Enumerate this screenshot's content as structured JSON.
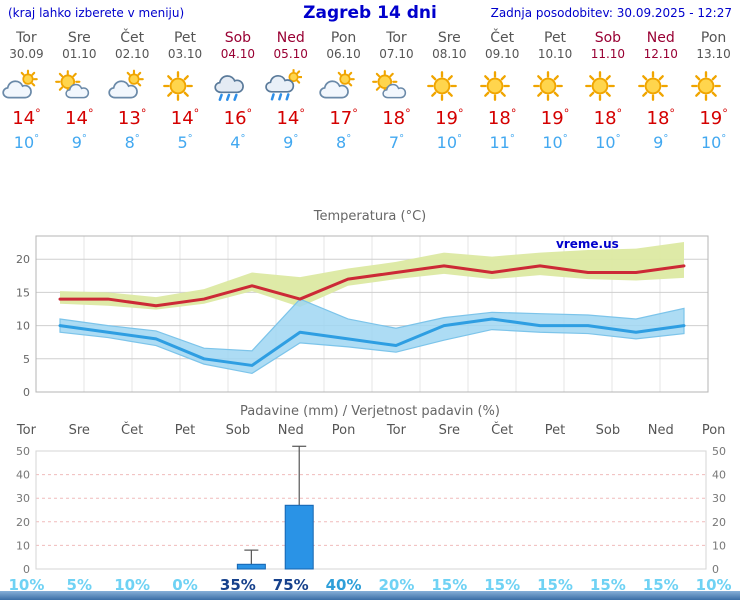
{
  "header": {
    "hint": "(kraj lahko izberete v meniju)",
    "title": "Zagreb 14 dni",
    "updated": "Zadnja posodobitev: 30.09.2025 - 12:27"
  },
  "ui": {
    "degree": "°"
  },
  "colors": {
    "accent_blue": "#0000cc",
    "weekday": "#555555",
    "weekend": "#990033",
    "temp_high": "#d40000",
    "temp_low": "#42a8f0",
    "line_high": "#cc2936",
    "line_low": "#2e9ee2",
    "band_high": "#dce9a2",
    "band_low": "#9fd6f2",
    "bar_fill": "#2a93e6",
    "bar_stroke": "#1565b0",
    "prob_low": "#6fd2f4",
    "prob_mid": "#2e9fd9",
    "prob_high": "#16418c"
  },
  "days": [
    {
      "name": "Tor",
      "date": "30.09",
      "icon": "cloud-sun",
      "high": "14",
      "low": "10",
      "weekend": false
    },
    {
      "name": "Sre",
      "date": "01.10",
      "icon": "sun-cloud",
      "high": "14",
      "low": "9",
      "weekend": false
    },
    {
      "name": "Čet",
      "date": "02.10",
      "icon": "cloud-sun",
      "high": "13",
      "low": "8",
      "weekend": false
    },
    {
      "name": "Pet",
      "date": "03.10",
      "icon": "sun",
      "high": "14",
      "low": "5",
      "weekend": false
    },
    {
      "name": "Sob",
      "date": "04.10",
      "icon": "rain",
      "high": "16",
      "low": "4",
      "weekend": true
    },
    {
      "name": "Ned",
      "date": "05.10",
      "icon": "rain-sun",
      "high": "14",
      "low": "9",
      "weekend": true
    },
    {
      "name": "Pon",
      "date": "06.10",
      "icon": "cloud-sun",
      "high": "17",
      "low": "8",
      "weekend": false
    },
    {
      "name": "Tor",
      "date": "07.10",
      "icon": "sun-cloud",
      "high": "18",
      "low": "7",
      "weekend": false
    },
    {
      "name": "Sre",
      "date": "08.10",
      "icon": "sun",
      "high": "19",
      "low": "10",
      "weekend": false
    },
    {
      "name": "Čet",
      "date": "09.10",
      "icon": "sun",
      "high": "18",
      "low": "11",
      "weekend": false
    },
    {
      "name": "Pet",
      "date": "10.10",
      "icon": "sun",
      "high": "19",
      "low": "10",
      "weekend": false
    },
    {
      "name": "Sob",
      "date": "11.10",
      "icon": "sun",
      "high": "18",
      "low": "10",
      "weekend": true
    },
    {
      "name": "Ned",
      "date": "12.10",
      "icon": "sun",
      "high": "18",
      "low": "9",
      "weekend": true
    },
    {
      "name": "Pon",
      "date": "13.10",
      "icon": "sun",
      "high": "19",
      "low": "10",
      "weekend": false
    }
  ],
  "chart_data": [
    {
      "type": "line",
      "title": "Temperatura (°C)",
      "watermark": "vreme.us",
      "x_labels": [
        "Tor 30.09",
        "Sre 01.10",
        "Čet 02.10",
        "Pet 03.10",
        "Sob 04.10",
        "Ned 05.10",
        "Pon 06.10",
        "Tor 07.10",
        "Sre 08.10",
        "Čet 09.10",
        "Pet 10.10",
        "Sob 11.10",
        "Ned 12.10",
        "Pon 13.10"
      ],
      "ylim": [
        0,
        23.5
      ],
      "yticks": [
        0,
        5,
        10,
        15,
        20
      ],
      "grid": true,
      "series": [
        {
          "name": "max-temperatura",
          "color": "#cc2936",
          "values": [
            14,
            14,
            13,
            14,
            16,
            14,
            17,
            18,
            19,
            18,
            19,
            18,
            18,
            19
          ]
        },
        {
          "name": "min-temperatura",
          "color": "#2e9ee2",
          "values": [
            10,
            9,
            8,
            5,
            4,
            9,
            8,
            7,
            10,
            11,
            10,
            10,
            9,
            10
          ]
        }
      ],
      "bands": [
        {
          "name": "max-razpon",
          "color": "#dce9a2",
          "opacity": 0.95,
          "edge": "none",
          "upper": [
            15.2,
            15.0,
            14.3,
            15.5,
            18.0,
            17.3,
            18.6,
            19.6,
            21.0,
            20.4,
            21.0,
            21.4,
            21.6,
            22.6
          ],
          "lower": [
            13.3,
            13.0,
            12.4,
            13.3,
            15.2,
            12.8,
            16.0,
            17.0,
            17.8,
            17.0,
            17.6,
            17.0,
            16.8,
            17.2
          ]
        },
        {
          "name": "min-razpon",
          "color": "#9fd6f2",
          "opacity": 0.85,
          "edge": "#7cc4ea",
          "upper": [
            11.0,
            10.0,
            9.2,
            6.6,
            6.2,
            14.0,
            11.0,
            9.6,
            11.2,
            12.0,
            11.8,
            11.6,
            11.0,
            12.6
          ],
          "lower": [
            9.0,
            8.2,
            7.0,
            4.2,
            2.8,
            7.4,
            6.8,
            6.0,
            7.8,
            9.4,
            9.0,
            8.8,
            8.0,
            8.8
          ]
        }
      ]
    },
    {
      "type": "bar",
      "title": "Padavine (mm) / Verjetnost padavin (%)",
      "categories": [
        "Tor",
        "Sre",
        "Čet",
        "Pet",
        "Sob",
        "Ned",
        "Pon",
        "Tor",
        "Sre",
        "Čet",
        "Pet",
        "Sob",
        "Ned",
        "Pon"
      ],
      "values": [
        0,
        0,
        0,
        0,
        2,
        27,
        0,
        0,
        0,
        0,
        0,
        0,
        0,
        0
      ],
      "whisker_max": [
        0,
        0,
        0,
        0,
        8,
        52,
        0,
        0,
        0,
        0,
        0,
        0,
        0,
        0
      ],
      "probabilities": [
        10,
        5,
        10,
        0,
        35,
        75,
        40,
        20,
        15,
        15,
        15,
        15,
        15,
        10
      ],
      "prob_labels": [
        "10%",
        "5%",
        "10%",
        "0%",
        "35%",
        "75%",
        "40%",
        "20%",
        "15%",
        "15%",
        "15%",
        "15%",
        "15%",
        "10%"
      ],
      "prob_levels": [
        "low",
        "low",
        "low",
        "low",
        "high",
        "high",
        "mid",
        "low",
        "low",
        "low",
        "low",
        "low",
        "low",
        "low"
      ],
      "ylim": [
        0,
        50
      ],
      "yticks": [
        0,
        10,
        20,
        30,
        40,
        50
      ],
      "grid": true
    }
  ]
}
